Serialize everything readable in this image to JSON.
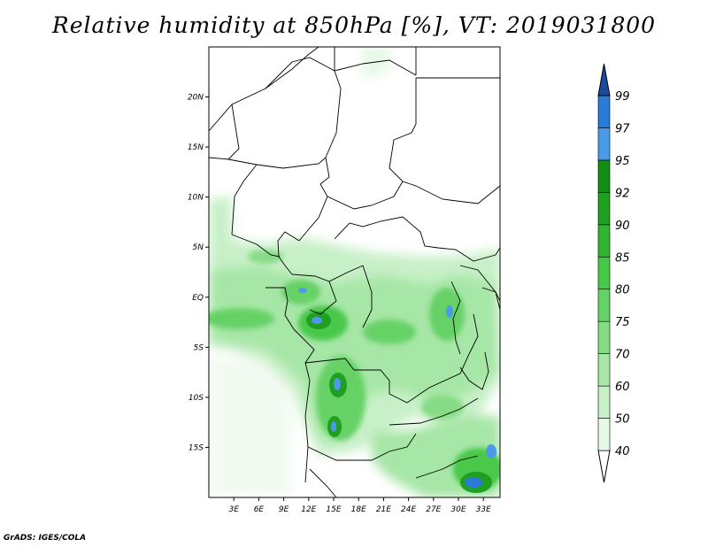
{
  "title": "Relative humidity at 850hPa [%], VT: 2019031800",
  "credit": "GrADS: IGES/COLA",
  "map": {
    "lon_range": [
      0,
      35
    ],
    "lat_range": [
      -20,
      25
    ],
    "lat_ticks": [
      {
        "value": 20,
        "label": "20N"
      },
      {
        "value": 15,
        "label": "15N"
      },
      {
        "value": 10,
        "label": "10N"
      },
      {
        "value": 5,
        "label": "5N"
      },
      {
        "value": 0,
        "label": "EQ"
      },
      {
        "value": -5,
        "label": "5S"
      },
      {
        "value": -10,
        "label": "10S"
      },
      {
        "value": -15,
        "label": "15S"
      }
    ],
    "lon_ticks": [
      {
        "value": 3,
        "label": "3E"
      },
      {
        "value": 6,
        "label": "6E"
      },
      {
        "value": 9,
        "label": "9E"
      },
      {
        "value": 12,
        "label": "12E"
      },
      {
        "value": 15,
        "label": "15E"
      },
      {
        "value": 18,
        "label": "18E"
      },
      {
        "value": 21,
        "label": "21E"
      },
      {
        "value": 24,
        "label": "24E"
      },
      {
        "value": 27,
        "label": "27E"
      },
      {
        "value": 30,
        "label": "30E"
      },
      {
        "value": 33,
        "label": "33E"
      }
    ]
  },
  "colorbar": {
    "levels": [
      "40",
      "50",
      "60",
      "70",
      "75",
      "80",
      "85",
      "90",
      "92",
      "95",
      "97",
      "99"
    ],
    "colors": [
      "#e6f8e6",
      "#c8f0c8",
      "#a6e6a6",
      "#86dc86",
      "#66d266",
      "#48c848",
      "#32b432",
      "#20a020",
      "#128c12",
      "#4c9ae6",
      "#2a7ad8",
      "#1a5ec0",
      "#1a4aa0"
    ]
  }
}
